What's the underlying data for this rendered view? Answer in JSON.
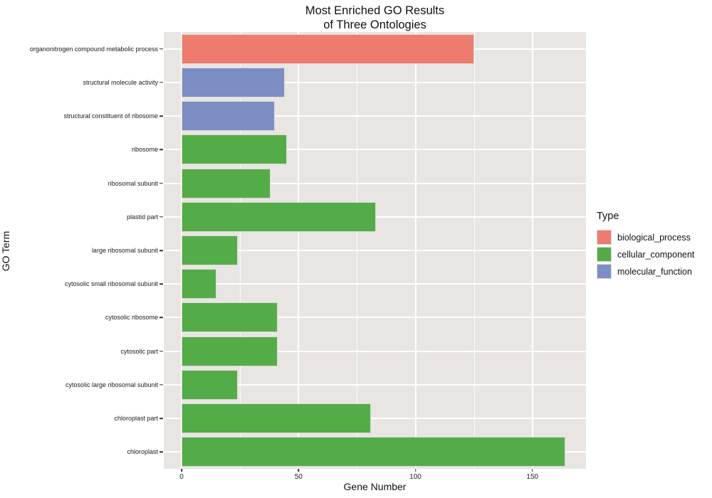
{
  "chart_data": {
    "type": "bar",
    "orientation": "horizontal",
    "title": "Most Enriched GO Results of Three Ontologies",
    "title_line1": "Most Enriched GO Results",
    "title_line2": "of Three Ontologies",
    "xlabel": "Gene Number",
    "ylabel": "GO Term",
    "xlim": [
      0,
      172
    ],
    "x_ticks": [
      0,
      50,
      100,
      150
    ],
    "x_minor_ticks": [
      25,
      75,
      125
    ],
    "grid": "on",
    "panel_bg": "#E9E5E3",
    "grid_color": "#FFFFFF",
    "categories": [
      "organonitrogen compound metabolic process",
      "structural molecule activity",
      "structural constituent of ribosome",
      "ribosome",
      "ribosomal subunit",
      "plastid part",
      "large ribosomal subunit",
      "cytosolic small ribosomal subunit",
      "cytosolic ribosome",
      "cytosolic part",
      "cytosolic large ribosomal subunit",
      "chloroplast part",
      "chloroplast"
    ],
    "values": [
      125,
      44,
      40,
      45,
      38,
      83,
      24,
      15,
      41,
      41,
      24,
      81,
      164
    ],
    "types": [
      "biological_process",
      "molecular_function",
      "molecular_function",
      "cellular_component",
      "cellular_component",
      "cellular_component",
      "cellular_component",
      "cellular_component",
      "cellular_component",
      "cellular_component",
      "cellular_component",
      "cellular_component",
      "cellular_component"
    ],
    "type_colors": {
      "biological_process": "#EE7B6E",
      "cellular_component": "#54AC48",
      "molecular_function": "#7D8EC4"
    },
    "legend": {
      "title": "Type",
      "position": "right",
      "entries": [
        "biological_process",
        "cellular_component",
        "molecular_function"
      ]
    }
  }
}
